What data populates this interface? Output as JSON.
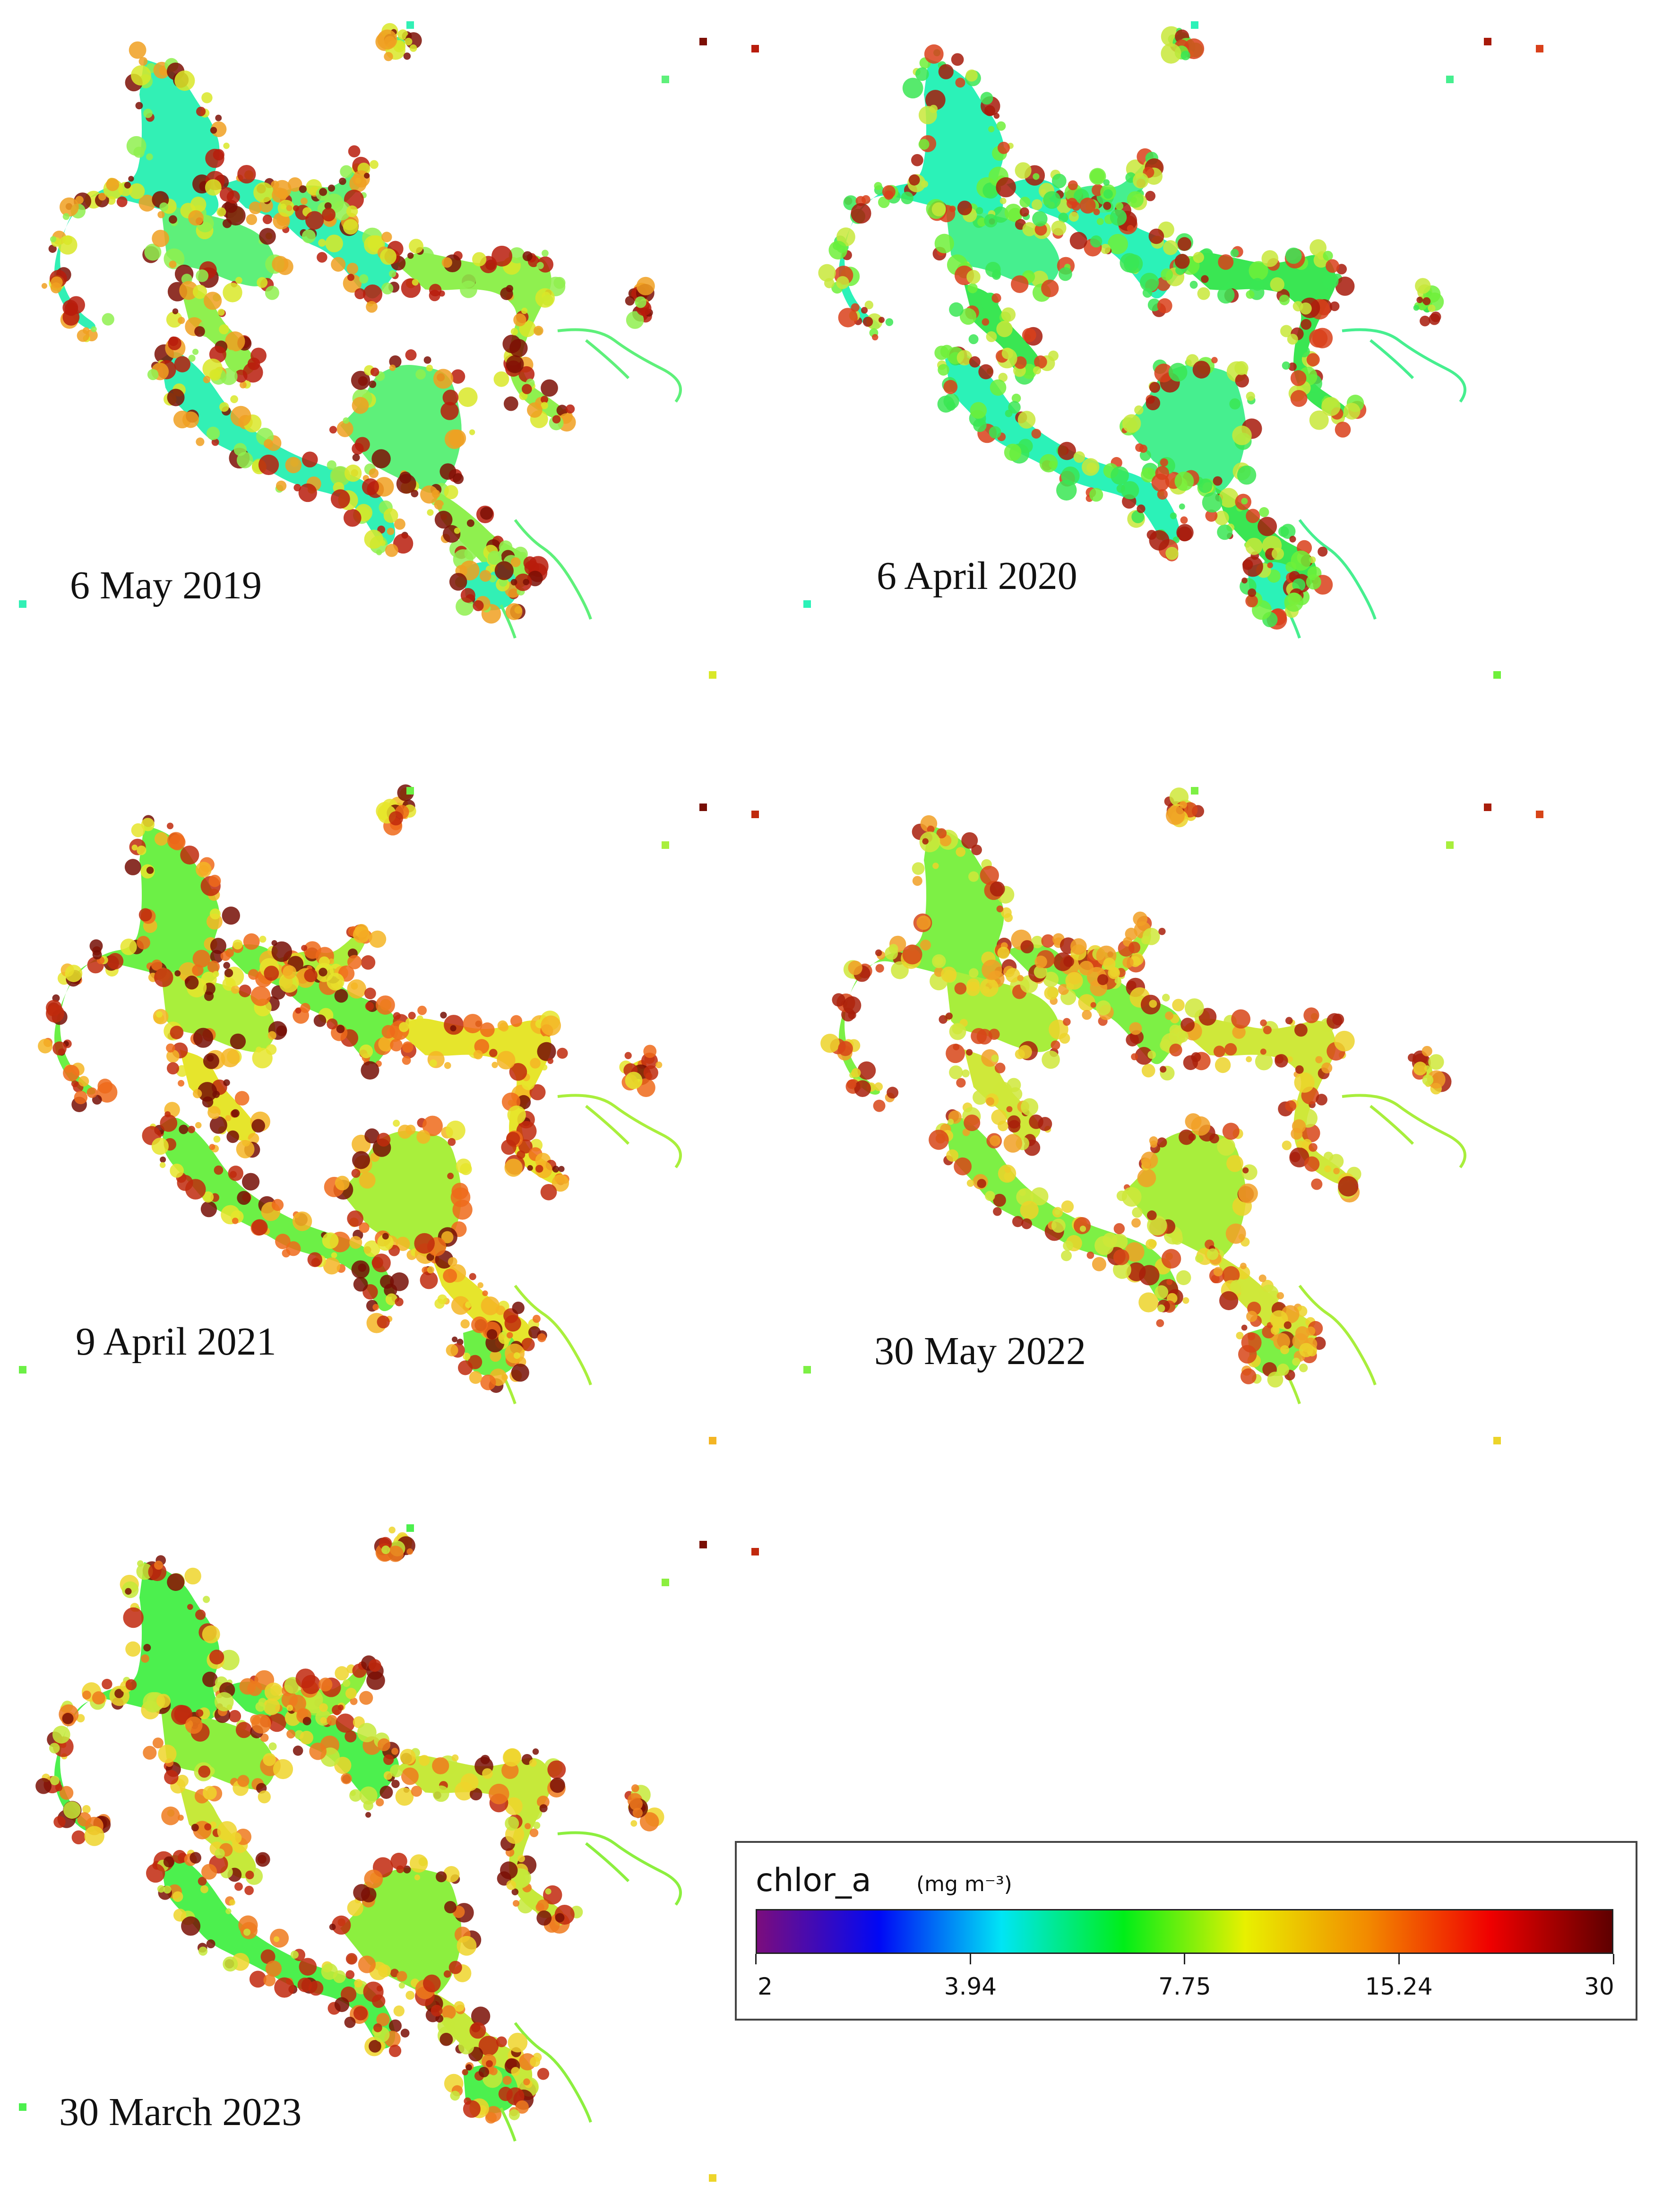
{
  "panels": [
    {
      "date": "6 May 2019",
      "palette": [
        "#32f0b5",
        "#5ef07a",
        "#8ff04f",
        "#d9e828",
        "#f0a021",
        "#b81c0c",
        "#7d0f05"
      ]
    },
    {
      "date": "6 April 2020",
      "palette": [
        "#2bf2b8",
        "#46ef8f",
        "#3ae653",
        "#6ef03a",
        "#c8e83a",
        "#d9401a",
        "#a71a0a"
      ]
    },
    {
      "date": "9 April 2021",
      "palette": [
        "#6cf046",
        "#a9ef3c",
        "#e6e52c",
        "#f4b524",
        "#ee6a1a",
        "#c02a0d",
        "#760e05"
      ]
    },
    {
      "date": "30 May 2022",
      "palette": [
        "#7df045",
        "#a8ee3c",
        "#cfe83a",
        "#ecd42a",
        "#f1a026",
        "#d74518",
        "#a81e0b"
      ]
    },
    {
      "date": "30 March 2023",
      "palette": [
        "#4cf04e",
        "#8cef3f",
        "#c6e93a",
        "#eed52b",
        "#ef7a1d",
        "#c1280d",
        "#7a0f05"
      ]
    }
  ],
  "legend": {
    "variable": "chlor_a",
    "unit": "(mg m⁻³)",
    "ticks": [
      {
        "label": "2",
        "value": 2
      },
      {
        "label": "3.94",
        "value": 3.94
      },
      {
        "label": "7.75",
        "value": 7.75
      },
      {
        "label": "15.24",
        "value": 15.24
      },
      {
        "label": "30",
        "value": 30
      }
    ],
    "scale": "log",
    "colormap": [
      "#7b0d7d",
      "#0008f5",
      "#00e5f5",
      "#00ee18",
      "#e8f000",
      "#f28a00",
      "#f00000",
      "#5e0000"
    ]
  }
}
